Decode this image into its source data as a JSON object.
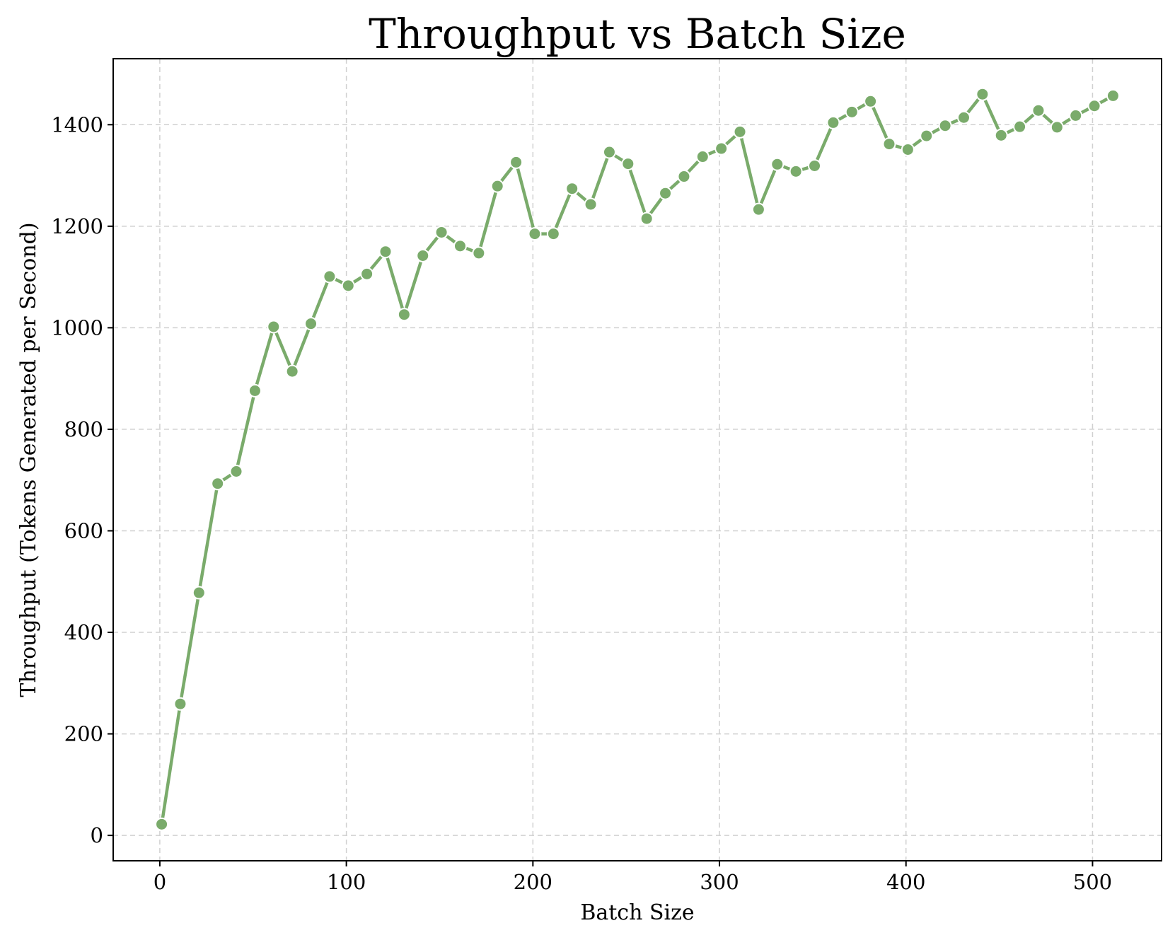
{
  "chart_data": {
    "type": "line",
    "title": "Throughput vs Batch Size",
    "xlabel": "Batch Size",
    "ylabel": "Throughput (Tokens Generated per Second)",
    "xlim": [
      -25,
      537
    ],
    "ylim": [
      -50,
      1530
    ],
    "xticks": [
      0,
      100,
      200,
      300,
      400,
      500
    ],
    "yticks": [
      0,
      200,
      400,
      600,
      800,
      1000,
      1200,
      1400
    ],
    "grid": true,
    "line_color": "#7aab6b",
    "series": [
      {
        "x": [
          1,
          11,
          21,
          31,
          41,
          51,
          61,
          71,
          81,
          91,
          101,
          111,
          121,
          131,
          141,
          151,
          161,
          171,
          181,
          191,
          201,
          211,
          221,
          231,
          241,
          251,
          261,
          271,
          281,
          291,
          301,
          311,
          321,
          331,
          341,
          351,
          361,
          371,
          381,
          391,
          401,
          411,
          421,
          431,
          441,
          451,
          461,
          471,
          481,
          491,
          501,
          511
        ],
        "y": [
          22,
          259,
          478,
          693,
          717,
          876,
          1002,
          914,
          1008,
          1101,
          1083,
          1106,
          1150,
          1026,
          1142,
          1188,
          1161,
          1147,
          1279,
          1326,
          1185,
          1185,
          1274,
          1243,
          1346,
          1323,
          1215,
          1265,
          1298,
          1337,
          1353,
          1386,
          1233,
          1322,
          1308,
          1319,
          1404,
          1425,
          1446,
          1362,
          1351,
          1378,
          1398,
          1414,
          1460,
          1379,
          1396,
          1428,
          1395,
          1418,
          1437,
          1457
        ]
      }
    ]
  }
}
